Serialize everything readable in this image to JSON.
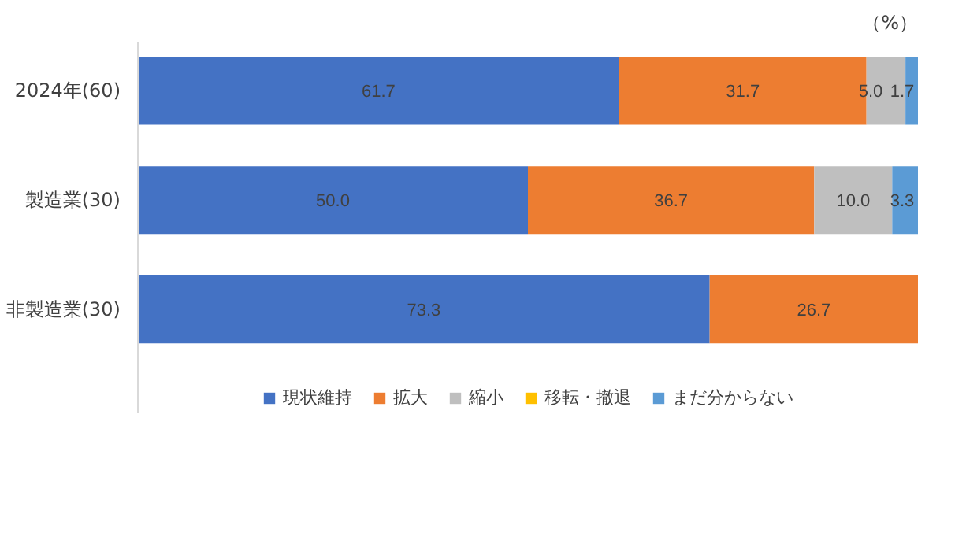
{
  "chart_data": {
    "type": "bar",
    "orientation": "horizontal",
    "stacked": true,
    "categories": [
      "2024年(60)",
      "製造業(30)",
      "非製造業(30)"
    ],
    "xlim": [
      0,
      100
    ],
    "tick_labels": "y",
    "grid": false,
    "legend": "bottom",
    "annotations": [
      "（%）"
    ],
    "series": [
      {
        "name": "現状維持",
        "color": "#4472c4",
        "values": [
          61.7,
          50.0,
          73.3
        ],
        "value_labels": [
          "61.7",
          "50.0",
          "73.3"
        ]
      },
      {
        "name": "拡大",
        "color": "#ed7d31",
        "values": [
          31.7,
          36.7,
          26.7
        ],
        "value_labels": [
          "31.7",
          "36.7",
          "26.7"
        ]
      },
      {
        "name": "縮小",
        "color": "#bfbfbf",
        "values": [
          5.0,
          10.0,
          0
        ],
        "value_labels": [
          "5.0",
          "10.0",
          null
        ]
      },
      {
        "name": "移転・撤退",
        "color": "#ffc000",
        "values": [
          0,
          0,
          0
        ],
        "value_labels": [
          null,
          null,
          null
        ]
      },
      {
        "name": "まだ分からない",
        "color": "#5b9bd5",
        "values": [
          1.7,
          3.3,
          0
        ],
        "value_labels": [
          "1.7",
          "3.3",
          null
        ]
      }
    ]
  }
}
